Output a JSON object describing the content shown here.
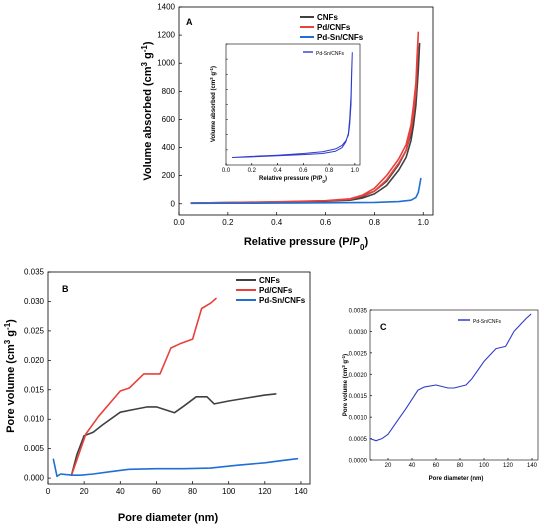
{
  "chart_data": [
    {
      "id": "A",
      "panel_label": "A",
      "type": "line",
      "xlabel": "Relative pressure (P/P",
      "xlabel_sub": "0",
      "xlabel_end": ")",
      "ylabel": "Volume absorbed (cm",
      "ylabel_sup1": "3",
      "ylabel_mid": " g",
      "ylabel_sup2": "-1",
      "ylabel_end": ")",
      "xlim": [
        0,
        1.04
      ],
      "ylim": [
        -80,
        1400
      ],
      "xticks": [
        0.0,
        0.2,
        0.4,
        0.6,
        0.8,
        1.0
      ],
      "xtick_labels": [
        "0.0",
        "0.2",
        "0.4",
        "0.6",
        "0.8",
        "1.0"
      ],
      "yticks": [
        0,
        200,
        400,
        600,
        800,
        1000,
        1200,
        1400
      ],
      "ytick_labels": [
        "0",
        "200",
        "400",
        "600",
        "800",
        "1000",
        "1200",
        "1400"
      ],
      "legend_position": "top-right",
      "series": [
        {
          "name": "CNFs",
          "color": "#404040",
          "x": [
            0.05,
            0.2,
            0.4,
            0.6,
            0.7,
            0.75,
            0.8,
            0.85,
            0.9,
            0.93,
            0.95,
            0.96,
            0.97,
            0.98,
            0.985,
            0.98,
            0.97,
            0.96,
            0.95,
            0.93,
            0.9,
            0.85,
            0.8,
            0.75,
            0.7,
            0.6,
            0.4,
            0.2,
            0.05
          ],
          "y": [
            5,
            8,
            12,
            18,
            25,
            40,
            70,
            130,
            240,
            330,
            450,
            560,
            700,
            950,
            1140,
            1000,
            780,
            620,
            500,
            380,
            280,
            160,
            90,
            50,
            30,
            20,
            12,
            8,
            5
          ]
        },
        {
          "name": "Pd/CNFs",
          "color": "#e8413c",
          "x": [
            0.05,
            0.2,
            0.4,
            0.6,
            0.7,
            0.75,
            0.8,
            0.85,
            0.9,
            0.93,
            0.95,
            0.96,
            0.97,
            0.975,
            0.98,
            0.975,
            0.97,
            0.96,
            0.95,
            0.93,
            0.9,
            0.85,
            0.8,
            0.75,
            0.7,
            0.6,
            0.4,
            0.2,
            0.05
          ],
          "y": [
            5,
            9,
            14,
            22,
            32,
            55,
            90,
            170,
            290,
            380,
            520,
            640,
            800,
            1000,
            1220,
            1050,
            860,
            700,
            560,
            420,
            320,
            200,
            110,
            60,
            35,
            22,
            14,
            9,
            5
          ]
        },
        {
          "name": "Pd-Sn/CNFs",
          "color": "#1f6fd6",
          "x": [
            0.05,
            0.2,
            0.4,
            0.6,
            0.8,
            0.9,
            0.95,
            0.97,
            0.98,
            0.985,
            0.99
          ],
          "y": [
            3,
            4,
            5,
            7,
            10,
            15,
            25,
            45,
            80,
            130,
            180
          ]
        }
      ]
    },
    {
      "id": "A-inset",
      "type": "line",
      "xlabel": "Relative pressure (P/P",
      "xlabel_sub": "0",
      "xlabel_end": ")",
      "ylabel": "Volume absorbed (cm",
      "ylabel_sup1": "3",
      "ylabel_mid": " g",
      "ylabel_sup2": "-1",
      "ylabel_end": ")",
      "xlim": [
        0,
        1.04
      ],
      "ylim": [
        -10,
        200
      ],
      "xticks": [
        0.0,
        0.2,
        0.4,
        0.6,
        0.8,
        1.0
      ],
      "xtick_labels": [
        "0.0",
        "0.2",
        "0.4",
        "0.6",
        "0.8",
        "1.0"
      ],
      "series": [
        {
          "name": "Pd-Sn/CNFs",
          "color": "#2f3cc9",
          "x": [
            0.05,
            0.2,
            0.4,
            0.6,
            0.75,
            0.85,
            0.9,
            0.93,
            0.95,
            0.96,
            0.97,
            0.975,
            0.98,
            0.975,
            0.97,
            0.96,
            0.95,
            0.93,
            0.9,
            0.85,
            0.75,
            0.6,
            0.4,
            0.2,
            0.05
          ],
          "y": [
            3,
            4,
            6,
            8,
            10,
            14,
            20,
            30,
            45,
            70,
            110,
            150,
            185,
            140,
            95,
            60,
            42,
            32,
            24,
            18,
            13,
            10,
            7,
            5,
            3
          ]
        }
      ]
    },
    {
      "id": "B",
      "panel_label": "B",
      "type": "line",
      "xlabel": "Pore diameter (nm)",
      "ylabel": "Pore volume (cm",
      "ylabel_sup1": "3",
      "ylabel_mid": " g",
      "ylabel_sup2": "-1",
      "ylabel_end": ")",
      "xlim": [
        0,
        145
      ],
      "ylim": [
        -0.001,
        0.035
      ],
      "xticks": [
        0,
        20,
        40,
        60,
        80,
        100,
        120,
        140
      ],
      "xtick_labels": [
        "0",
        "20",
        "40",
        "60",
        "80",
        "100",
        "120",
        "140"
      ],
      "yticks": [
        0.0,
        0.005,
        0.01,
        0.015,
        0.02,
        0.025,
        0.03,
        0.035
      ],
      "ytick_labels": [
        "0.000",
        "0.005",
        "0.010",
        "0.015",
        "0.020",
        "0.025",
        "0.030",
        "0.035"
      ],
      "legend_position": "top-right",
      "series": [
        {
          "name": "CNFs",
          "color": "#404040",
          "x": [
            13,
            16,
            20,
            25,
            30,
            40,
            50,
            55,
            60,
            70,
            75,
            82,
            88,
            92,
            100,
            110,
            120,
            126
          ],
          "y": [
            0.0005,
            0.004,
            0.0072,
            0.0078,
            0.009,
            0.0112,
            0.0118,
            0.0121,
            0.0121,
            0.0111,
            0.0122,
            0.0138,
            0.0138,
            0.0126,
            0.0131,
            0.0136,
            0.0141,
            0.0143
          ]
        },
        {
          "name": "Pd/CNFs",
          "color": "#e8413c",
          "x": [
            13,
            17,
            21,
            28,
            35,
            40,
            45,
            53,
            57,
            62,
            68,
            73,
            80,
            85,
            90,
            93
          ],
          "y": [
            0.0005,
            0.004,
            0.0075,
            0.0105,
            0.013,
            0.0148,
            0.0153,
            0.0177,
            0.0177,
            0.0177,
            0.0221,
            0.0228,
            0.0236,
            0.0288,
            0.0297,
            0.0305
          ]
        },
        {
          "name": "Pd-Sn/CNFs",
          "color": "#1f6fd6",
          "x": [
            3,
            5,
            7,
            10,
            14,
            18,
            25,
            35,
            45,
            60,
            75,
            90,
            105,
            120,
            130,
            138
          ],
          "y": [
            0.0032,
            0.0003,
            0.0007,
            0.0006,
            0.0005,
            0.0005,
            0.0007,
            0.0011,
            0.0015,
            0.0016,
            0.0016,
            0.0017,
            0.0022,
            0.0026,
            0.003,
            0.0033
          ]
        }
      ]
    },
    {
      "id": "C",
      "panel_label": "C",
      "type": "line",
      "xlabel": "Pore diameter (nm)",
      "ylabel": "Pore volume (cm",
      "ylabel_sup1": "3",
      "ylabel_mid": " g",
      "ylabel_sup2": "-1",
      "ylabel_end": ")",
      "xlim": [
        5,
        145
      ],
      "ylim": [
        0,
        0.0035
      ],
      "xticks": [
        20,
        40,
        60,
        80,
        100,
        120,
        140
      ],
      "xtick_labels": [
        "20",
        "40",
        "60",
        "80",
        "100",
        "120",
        "140"
      ],
      "yticks": [
        0.0,
        0.0005,
        0.001,
        0.0015,
        0.002,
        0.0025,
        0.003,
        0.0035
      ],
      "ytick_labels": [
        "0.0000",
        "0.0005",
        "0.0010",
        "0.0015",
        "0.0020",
        "0.0025",
        "0.0030",
        "0.0035"
      ],
      "legend_position": "top-center",
      "series": [
        {
          "name": "Pd-Sn/CNFs",
          "color": "#2f3cc9",
          "x": [
            5,
            10,
            15,
            20,
            25,
            30,
            35,
            45,
            50,
            60,
            70,
            75,
            85,
            90,
            100,
            110,
            118,
            125,
            135,
            139
          ],
          "y": [
            0.0005,
            0.00045,
            0.0005,
            0.0006,
            0.0008,
            0.001,
            0.0012,
            0.00163,
            0.0017,
            0.00175,
            0.00168,
            0.00168,
            0.00175,
            0.0019,
            0.0023,
            0.0026,
            0.00265,
            0.003,
            0.0033,
            0.0034
          ]
        }
      ]
    }
  ]
}
